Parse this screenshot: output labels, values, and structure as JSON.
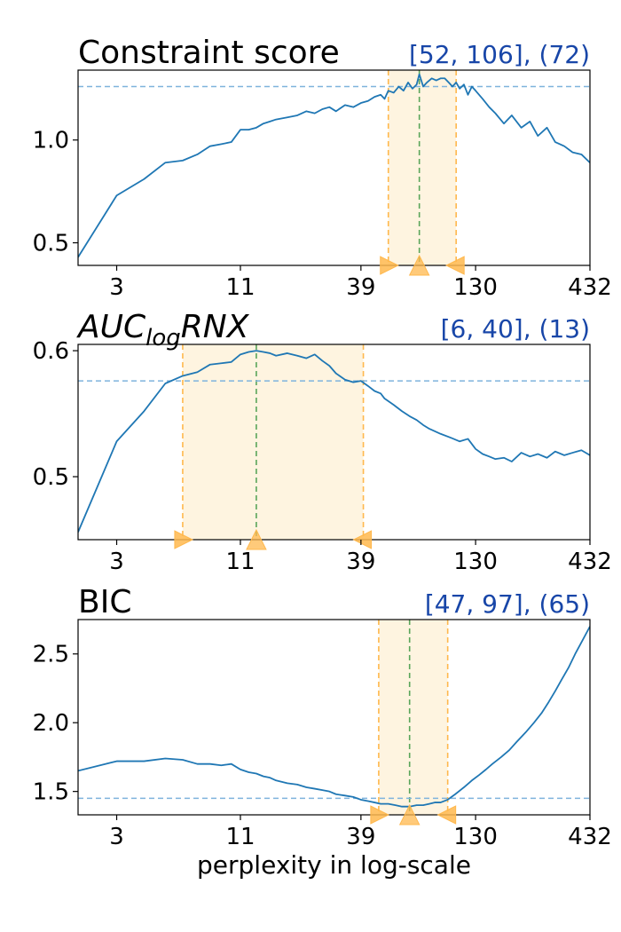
{
  "chart_data": [
    {
      "type": "line",
      "title": "Constraint score",
      "range_label": "[52, 106], (72)",
      "xscale": "log",
      "xlim": [
        2,
        432
      ],
      "xticks": [
        3,
        11,
        39,
        130,
        432
      ],
      "xtick_labels": [
        "3",
        "11",
        "39",
        "130",
        "432"
      ],
      "ylim": [
        0.39,
        1.34
      ],
      "yticks": [
        0.5,
        1.0
      ],
      "ytick_labels": [
        "0.5",
        "1.0"
      ],
      "baseline": 1.26,
      "interval": [
        52,
        106
      ],
      "best": 72,
      "x": [
        2,
        3,
        4,
        5,
        6,
        7,
        8,
        9,
        10,
        11,
        12,
        13,
        14,
        15,
        16,
        18,
        20,
        22,
        24,
        26,
        28,
        30,
        33,
        36,
        39,
        42,
        45,
        48,
        50,
        52,
        55,
        58,
        61,
        64,
        67,
        70,
        72,
        75,
        78,
        82,
        86,
        90,
        94,
        98,
        102,
        106,
        110,
        115,
        120,
        125,
        130,
        140,
        150,
        160,
        175,
        190,
        210,
        230,
        250,
        275,
        300,
        330,
        360,
        395,
        432
      ],
      "values": [
        0.43,
        0.73,
        0.81,
        0.89,
        0.9,
        0.93,
        0.97,
        0.98,
        0.99,
        1.05,
        1.05,
        1.06,
        1.08,
        1.09,
        1.1,
        1.11,
        1.12,
        1.14,
        1.13,
        1.15,
        1.16,
        1.14,
        1.17,
        1.16,
        1.18,
        1.19,
        1.21,
        1.22,
        1.2,
        1.24,
        1.23,
        1.26,
        1.24,
        1.28,
        1.25,
        1.27,
        1.32,
        1.26,
        1.28,
        1.3,
        1.29,
        1.3,
        1.3,
        1.28,
        1.26,
        1.28,
        1.25,
        1.27,
        1.22,
        1.26,
        1.24,
        1.2,
        1.16,
        1.13,
        1.08,
        1.12,
        1.06,
        1.09,
        1.02,
        1.06,
        0.99,
        0.97,
        0.94,
        0.93,
        0.89
      ]
    },
    {
      "type": "line",
      "title": "AUC",
      "title_sub": "log",
      "title_rest": "RNX",
      "range_label": "[6, 40], (13)",
      "xscale": "log",
      "xlim": [
        2,
        432
      ],
      "xticks": [
        3,
        11,
        39,
        130,
        432
      ],
      "xtick_labels": [
        "3",
        "11",
        "39",
        "130",
        "432"
      ],
      "ylim": [
        0.45,
        0.605
      ],
      "yticks": [
        0.5,
        0.6
      ],
      "ytick_labels": [
        "0.5",
        "0.6"
      ],
      "baseline": 0.576,
      "interval": [
        6,
        40
      ],
      "best": 13,
      "x": [
        2,
        3,
        4,
        5,
        6,
        7,
        8,
        9,
        10,
        11,
        12,
        13,
        14,
        15,
        16,
        18,
        20,
        22,
        24,
        26,
        28,
        30,
        33,
        36,
        39,
        42,
        45,
        48,
        50,
        55,
        60,
        65,
        70,
        75,
        80,
        90,
        100,
        110,
        120,
        130,
        140,
        150,
        160,
        175,
        190,
        210,
        230,
        250,
        275,
        300,
        330,
        360,
        395,
        432
      ],
      "values": [
        0.456,
        0.528,
        0.552,
        0.574,
        0.58,
        0.583,
        0.589,
        0.59,
        0.591,
        0.597,
        0.599,
        0.6,
        0.599,
        0.598,
        0.596,
        0.598,
        0.596,
        0.594,
        0.597,
        0.592,
        0.588,
        0.582,
        0.577,
        0.575,
        0.576,
        0.572,
        0.568,
        0.566,
        0.562,
        0.557,
        0.552,
        0.548,
        0.545,
        0.541,
        0.538,
        0.534,
        0.531,
        0.528,
        0.53,
        0.522,
        0.518,
        0.516,
        0.514,
        0.515,
        0.512,
        0.519,
        0.516,
        0.518,
        0.515,
        0.52,
        0.517,
        0.519,
        0.521,
        0.517
      ]
    },
    {
      "type": "line",
      "title": "BIC",
      "range_label": "[47, 97], (65)",
      "xscale": "log",
      "xlim": [
        2,
        432
      ],
      "xticks": [
        3,
        11,
        39,
        130,
        432
      ],
      "xtick_labels": [
        "3",
        "11",
        "39",
        "130",
        "432"
      ],
      "xlabel": "perplexity in log-scale",
      "ylim": [
        1.33,
        2.75
      ],
      "yticks": [
        1.5,
        2.0,
        2.5
      ],
      "ytick_labels": [
        "1.5",
        "2.0",
        "2.5"
      ],
      "baseline": 1.45,
      "interval": [
        47,
        97
      ],
      "best": 65,
      "x": [
        2,
        3,
        4,
        5,
        6,
        7,
        8,
        9,
        10,
        11,
        12,
        13,
        14,
        15,
        16,
        18,
        20,
        22,
        24,
        26,
        28,
        30,
        33,
        36,
        39,
        42,
        45,
        48,
        52,
        56,
        60,
        65,
        70,
        75,
        80,
        85,
        90,
        97,
        105,
        115,
        125,
        135,
        145,
        155,
        170,
        185,
        200,
        220,
        240,
        260,
        280,
        300,
        320,
        345,
        370,
        400,
        432
      ],
      "values": [
        1.65,
        1.72,
        1.72,
        1.74,
        1.73,
        1.7,
        1.7,
        1.69,
        1.7,
        1.66,
        1.64,
        1.63,
        1.61,
        1.6,
        1.58,
        1.56,
        1.55,
        1.53,
        1.52,
        1.51,
        1.5,
        1.48,
        1.47,
        1.46,
        1.44,
        1.43,
        1.42,
        1.41,
        1.41,
        1.4,
        1.39,
        1.39,
        1.4,
        1.4,
        1.41,
        1.42,
        1.42,
        1.44,
        1.48,
        1.53,
        1.58,
        1.62,
        1.66,
        1.7,
        1.75,
        1.8,
        1.86,
        1.93,
        2.0,
        2.07,
        2.15,
        2.23,
        2.31,
        2.4,
        2.5,
        2.6,
        2.7
      ]
    }
  ],
  "colors": {
    "line": "#1f77b4",
    "baseline": "#7fb3dd",
    "interval_fill": "#fef4e0",
    "interval_edge": "#ffb84d",
    "best_line": "#5aa55a",
    "marker": "#ffb84d",
    "range_label": "#1846a8"
  }
}
